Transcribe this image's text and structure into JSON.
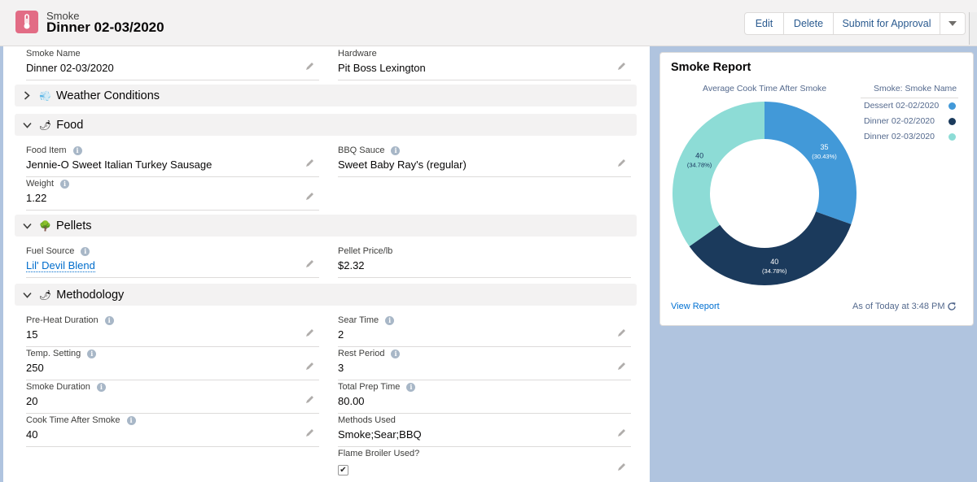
{
  "header": {
    "object_type": "Smoke",
    "record_title": "Dinner 02-03/2020",
    "buttons": {
      "edit": "Edit",
      "delete": "Delete",
      "submit": "Submit for Approval"
    }
  },
  "fields": {
    "smoke_name": {
      "label": "Smoke Name",
      "value": "Dinner 02-03/2020"
    },
    "hardware": {
      "label": "Hardware",
      "value": "Pit Boss Lexington"
    },
    "food_item": {
      "label": "Food Item",
      "value": "Jennie-O Sweet Italian Turkey Sausage"
    },
    "bbq_sauce": {
      "label": "BBQ Sauce",
      "value": "Sweet Baby Ray's (regular)"
    },
    "weight": {
      "label": "Weight",
      "value": "1.22"
    },
    "fuel_source": {
      "label": "Fuel Source",
      "value": "Lil' Devil Blend"
    },
    "pellet_price": {
      "label": "Pellet Price/lb",
      "value": "$2.32"
    },
    "preheat": {
      "label": "Pre-Heat Duration",
      "value": "15"
    },
    "sear_time": {
      "label": "Sear Time",
      "value": "2"
    },
    "temp_setting": {
      "label": "Temp. Setting",
      "value": "250"
    },
    "rest_period": {
      "label": "Rest Period",
      "value": "3"
    },
    "smoke_duration": {
      "label": "Smoke Duration",
      "value": "20"
    },
    "total_prep": {
      "label": "Total Prep Time",
      "value": "80.00"
    },
    "cook_after": {
      "label": "Cook Time After Smoke",
      "value": "40"
    },
    "methods_used": {
      "label": "Methods Used",
      "value": "Smoke;Sear;BBQ"
    },
    "flame_broiler": {
      "label": "Flame Broiler Used?",
      "value": "✔"
    }
  },
  "sections": {
    "weather": {
      "label": "Weather Conditions",
      "emoji": "💨"
    },
    "food": {
      "label": "Food",
      "emoji": "🌶"
    },
    "pellets": {
      "label": "Pellets",
      "emoji": "🌳"
    },
    "methodology": {
      "label": "Methodology",
      "emoji": "🌶"
    }
  },
  "report": {
    "title": "Smoke Report",
    "view_report": "View Report",
    "as_of": "As of Today at 3:48 PM"
  },
  "chart_data": {
    "type": "pie",
    "title": "Average Cook Time After Smoke",
    "legend_title": "Smoke: Smoke Name",
    "donut": true,
    "slices": [
      {
        "name": "Dessert 02-02/2020",
        "value": 35,
        "percent": "(30.43%)",
        "color": "#4299d8"
      },
      {
        "name": "Dinner 02-02/2020",
        "value": 40,
        "percent": "(34.78%)",
        "color": "#1b3a5c"
      },
      {
        "name": "Dinner 02-03/2020",
        "value": 40,
        "percent": "(34.78%)",
        "color": "#8ddcd6"
      }
    ]
  },
  "colors": {
    "object_icon": "#e26c85",
    "page_bg": "#b0c4df",
    "link": "#006dcc"
  }
}
